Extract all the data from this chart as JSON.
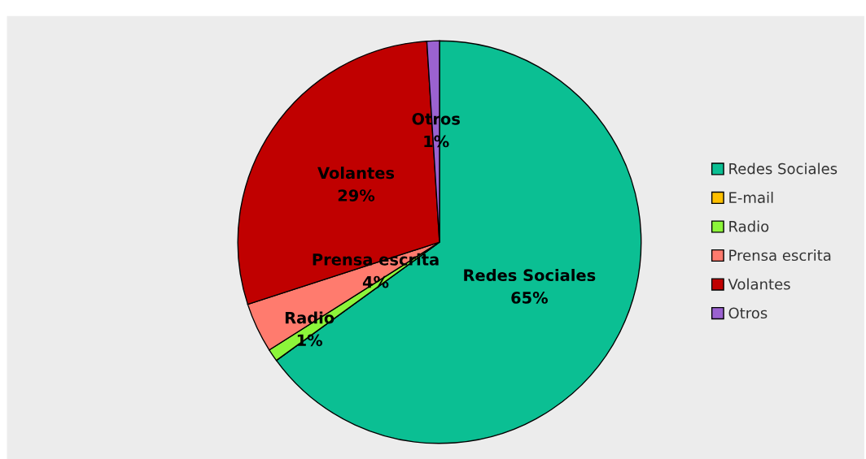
{
  "chart_data": {
    "type": "pie",
    "categories": [
      "Redes Sociales",
      "E-mail",
      "Radio",
      "Prensa escrita",
      "Volantes",
      "Otros"
    ],
    "values": [
      65,
      0,
      1,
      4,
      29,
      1
    ],
    "colors": [
      "#0bbf93",
      "#ffc000",
      "#8cf53a",
      "#ff7b6e",
      "#c00000",
      "#9b62d0"
    ],
    "value_labels": [
      "65%",
      null,
      "1%",
      "4%",
      "29%",
      "1%"
    ],
    "legend": "right"
  }
}
